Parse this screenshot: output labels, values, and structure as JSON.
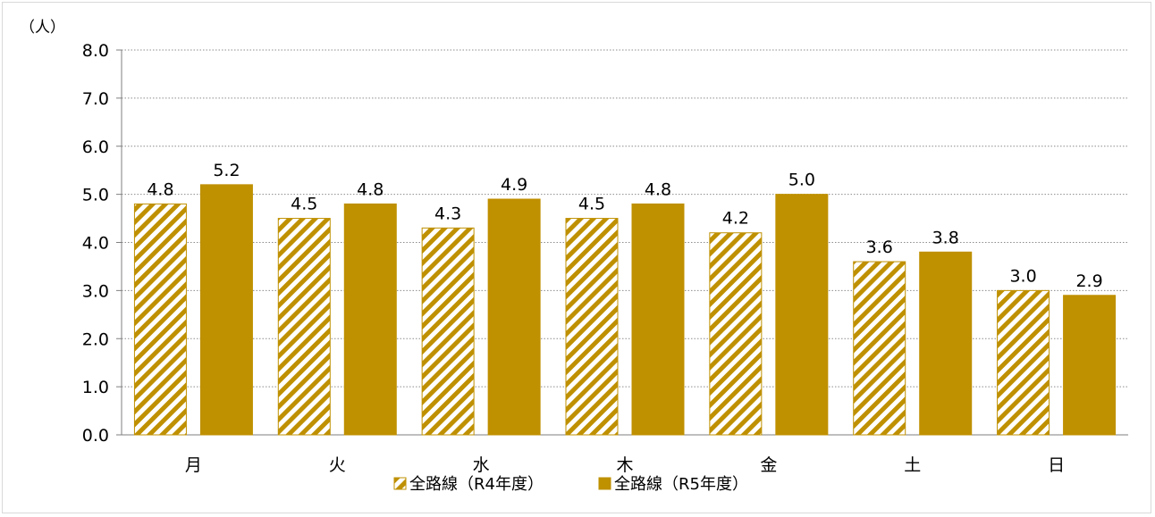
{
  "chart_data": {
    "type": "bar",
    "ylabel": "（人）",
    "ylim": [
      0,
      8
    ],
    "yticks": [
      "0.0",
      "1.0",
      "2.0",
      "3.0",
      "4.0",
      "5.0",
      "6.0",
      "7.0",
      "8.0"
    ],
    "categories": [
      "月",
      "火",
      "水",
      "木",
      "金",
      "土",
      "日"
    ],
    "grid": true,
    "legend_position": "bottom",
    "series": [
      {
        "name": "全路線（R4年度）",
        "values": [
          4.8,
          4.5,
          4.3,
          4.5,
          4.2,
          3.6,
          3.0
        ],
        "labels": [
          "4.8",
          "4.5",
          "4.3",
          "4.5",
          "4.2",
          "3.6",
          "3.0"
        ],
        "color": "#bf9000",
        "pattern": "diagonal-hatch"
      },
      {
        "name": "全路線（R5年度）",
        "values": [
          5.2,
          4.8,
          4.9,
          4.8,
          5.0,
          3.8,
          2.9
        ],
        "labels": [
          "5.2",
          "4.8",
          "4.9",
          "4.8",
          "5.0",
          "3.8",
          "2.9"
        ],
        "color": "#bf9000",
        "pattern": "solid"
      }
    ]
  }
}
